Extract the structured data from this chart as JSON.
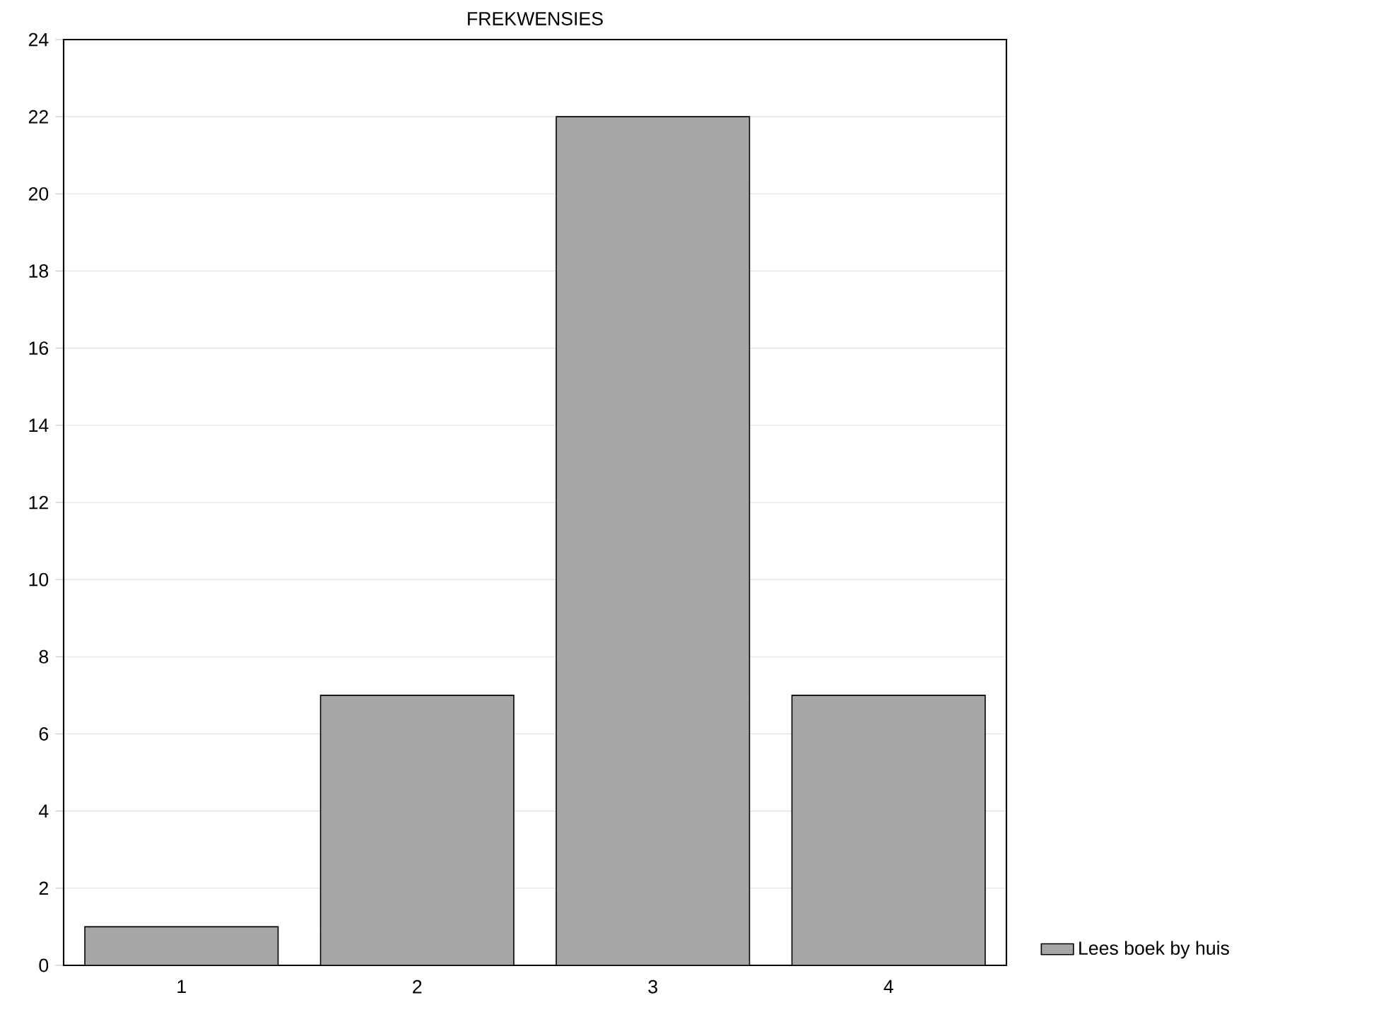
{
  "chart_data": {
    "type": "bar",
    "title": "FREKWENSIES",
    "categories": [
      "1",
      "2",
      "3",
      "4"
    ],
    "series": [
      {
        "name": "Lees boek by huis",
        "color": "#a6a6a6",
        "values": [
          1,
          7,
          22,
          7
        ]
      }
    ],
    "ylim": [
      0,
      24
    ],
    "yticks": [
      0,
      2,
      4,
      6,
      8,
      10,
      12,
      14,
      16,
      18,
      20,
      22,
      24
    ],
    "grid": "y",
    "legend": "bottom right"
  }
}
